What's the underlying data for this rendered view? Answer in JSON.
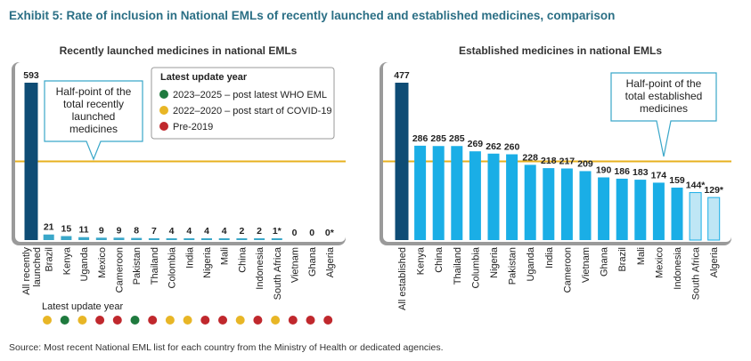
{
  "title": "Exhibit 5: Rate of inclusion in National EMLs of recently launched and established medicines, comparison",
  "source": "Source: Most recent National EML list for each country from the Ministry of Health or dedicated agencies.",
  "colors": {
    "total_bar": "#0e4c75",
    "country_bar_left": "#3aa7c9",
    "country_bar_right": "#1aaee6",
    "asterisk_bar_fill": "#bfe6f5",
    "half_line": "#e7b11f",
    "title": "#2b6f85",
    "green": "#1f7a3e",
    "yellow": "#e8b626",
    "red": "#c0282d"
  },
  "legend": {
    "title": "Latest update year",
    "items": [
      {
        "label": "2023–2025 – post latest WHO EML",
        "color": "green"
      },
      {
        "label": "2022–2020 – post start of COVID-19",
        "color": "yellow"
      },
      {
        "label": "Pre-2019",
        "color": "red"
      }
    ]
  },
  "dots_label": "Latest update year",
  "chart_data": [
    {
      "type": "bar",
      "title": "Recently launched medicines in national EMLs",
      "half_point_label": "Half-point of the total recently launched medicines",
      "half_point_value": 296.5,
      "ylim": [
        0,
        593
      ],
      "categories": [
        "All recently launched",
        "Brazil",
        "Kenya",
        "Uganda",
        "Mexico",
        "Cameroon",
        "Pakistan",
        "Thailand",
        "Colombia",
        "India",
        "Nigeria",
        "Mali",
        "China",
        "Indonesia",
        "South Africa",
        "Vietnam",
        "Ghana",
        "Algeria"
      ],
      "values": [
        593,
        21,
        15,
        11,
        9,
        9,
        8,
        7,
        4,
        4,
        4,
        4,
        2,
        2,
        1,
        0,
        0,
        0
      ],
      "value_labels": [
        "593",
        "21",
        "15",
        "11",
        "9",
        "9",
        "8",
        "7",
        "4",
        "4",
        "4",
        "4",
        "2",
        "2",
        "1*",
        "0",
        "0",
        "0*"
      ],
      "update_status": [
        "yellow",
        "green",
        "yellow",
        "red",
        "red",
        "green",
        "red",
        "yellow",
        "yellow",
        "red",
        "red",
        "yellow",
        "red",
        "yellow",
        "red",
        "red",
        "red"
      ]
    },
    {
      "type": "bar",
      "title": "Established medicines in national EMLs",
      "half_point_label": "Half-point of the total established medicines",
      "half_point_value": 238.5,
      "ylim": [
        0,
        477
      ],
      "categories": [
        "All established",
        "Kenya",
        "China",
        "Thailand",
        "Columbia",
        "Nigeria",
        "Pakistan",
        "Uganda",
        "India",
        "Cameroon",
        "Vietnam",
        "Ghana",
        "Brazil",
        "Mali",
        "Mexico",
        "Indonesia",
        "South Africa",
        "Algeria"
      ],
      "values": [
        477,
        286,
        285,
        285,
        269,
        262,
        260,
        228,
        218,
        217,
        209,
        190,
        186,
        183,
        174,
        159,
        144,
        129
      ],
      "value_labels": [
        "477",
        "286",
        "285",
        "285",
        "269",
        "262",
        "260",
        "228",
        "218",
        "217",
        "209",
        "190",
        "186",
        "183",
        "174",
        "159",
        "144*",
        "129*"
      ]
    }
  ]
}
